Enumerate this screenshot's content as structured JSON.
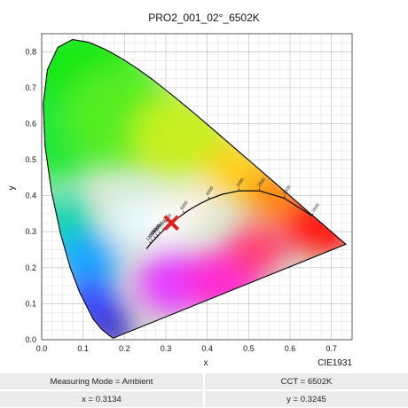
{
  "chart_data": {
    "type": "scatter",
    "title": "PRO2_001_02°_6502K",
    "xlabel": "x",
    "ylabel": "y",
    "diagram_label": "CIE1931",
    "xlim": [
      0.0,
      0.75
    ],
    "ylim": [
      0.0,
      0.85
    ],
    "xticks": [
      "0.0",
      "0.1",
      "0.2",
      "0.3",
      "0.4",
      "0.5",
      "0.6",
      "0.7"
    ],
    "yticks": [
      "0.0",
      "0.1",
      "0.2",
      "0.3",
      "0.4",
      "0.5",
      "0.6",
      "0.7",
      "0.8"
    ],
    "grid": true,
    "locus": [
      [
        0.1741,
        0.005
      ],
      [
        0.1738,
        0.0049
      ],
      [
        0.1736,
        0.0049
      ],
      [
        0.1733,
        0.0048
      ],
      [
        0.1726,
        0.0048
      ],
      [
        0.1714,
        0.0051
      ],
      [
        0.1689,
        0.0069
      ],
      [
        0.1644,
        0.0109
      ],
      [
        0.1566,
        0.0177
      ],
      [
        0.144,
        0.0297
      ],
      [
        0.1241,
        0.0578
      ],
      [
        0.0913,
        0.1327
      ],
      [
        0.0687,
        0.2007
      ],
      [
        0.0454,
        0.295
      ],
      [
        0.0235,
        0.4127
      ],
      [
        0.0082,
        0.5384
      ],
      [
        0.0039,
        0.6548
      ],
      [
        0.0139,
        0.7502
      ],
      [
        0.0389,
        0.812
      ],
      [
        0.0743,
        0.8338
      ],
      [
        0.1142,
        0.8262
      ],
      [
        0.1547,
        0.8059
      ],
      [
        0.1929,
        0.7816
      ],
      [
        0.2296,
        0.7543
      ],
      [
        0.2658,
        0.7243
      ],
      [
        0.3016,
        0.6923
      ],
      [
        0.3373,
        0.6589
      ],
      [
        0.3731,
        0.6245
      ],
      [
        0.4087,
        0.5896
      ],
      [
        0.4441,
        0.5547
      ],
      [
        0.4788,
        0.5202
      ],
      [
        0.5125,
        0.4866
      ],
      [
        0.5448,
        0.4544
      ],
      [
        0.5752,
        0.4242
      ],
      [
        0.6029,
        0.3965
      ],
      [
        0.627,
        0.3725
      ],
      [
        0.6482,
        0.3514
      ],
      [
        0.6658,
        0.334
      ],
      [
        0.6801,
        0.3197
      ],
      [
        0.6915,
        0.3083
      ],
      [
        0.7006,
        0.2993
      ],
      [
        0.7079,
        0.292
      ],
      [
        0.714,
        0.2859
      ],
      [
        0.719,
        0.2809
      ],
      [
        0.723,
        0.277
      ],
      [
        0.726,
        0.274
      ],
      [
        0.7283,
        0.2717
      ],
      [
        0.73,
        0.27
      ],
      [
        0.7311,
        0.2689
      ],
      [
        0.732,
        0.268
      ],
      [
        0.7334,
        0.2666
      ],
      [
        0.7347,
        0.2653
      ]
    ],
    "planckian_locus": [
      [
        0.6528,
        0.3444
      ],
      [
        0.5857,
        0.3931
      ],
      [
        0.5267,
        0.4133
      ],
      [
        0.477,
        0.4137
      ],
      [
        0.4369,
        0.4041
      ],
      [
        0.4053,
        0.3907
      ],
      [
        0.3805,
        0.3768
      ],
      [
        0.3608,
        0.3636
      ],
      [
        0.3451,
        0.3516
      ],
      [
        0.3221,
        0.3318
      ],
      [
        0.3064,
        0.3166
      ],
      [
        0.2952,
        0.3048
      ],
      [
        0.2869,
        0.2956
      ],
      [
        0.2807,
        0.2883
      ],
      [
        0.2757,
        0.2824
      ],
      [
        0.2688,
        0.2738
      ],
      [
        0.2641,
        0.2677
      ],
      [
        0.2565,
        0.2574
      ],
      [
        0.2532,
        0.2524
      ]
    ],
    "cct_labels": [
      "1500",
      "2000",
      "2500",
      "3000",
      "4000",
      "5000",
      "6000",
      "7000",
      "8000",
      "9000",
      "10000",
      "11000",
      "12000"
    ],
    "measured_point": {
      "x": 0.3134,
      "y": 0.3245,
      "color": "#e02020"
    }
  },
  "info": {
    "measuring_mode": "Measuring Mode = Ambient",
    "cct": "CCT = 6502K",
    "x": "x = 0.3134",
    "y": "y = 0.3245"
  }
}
